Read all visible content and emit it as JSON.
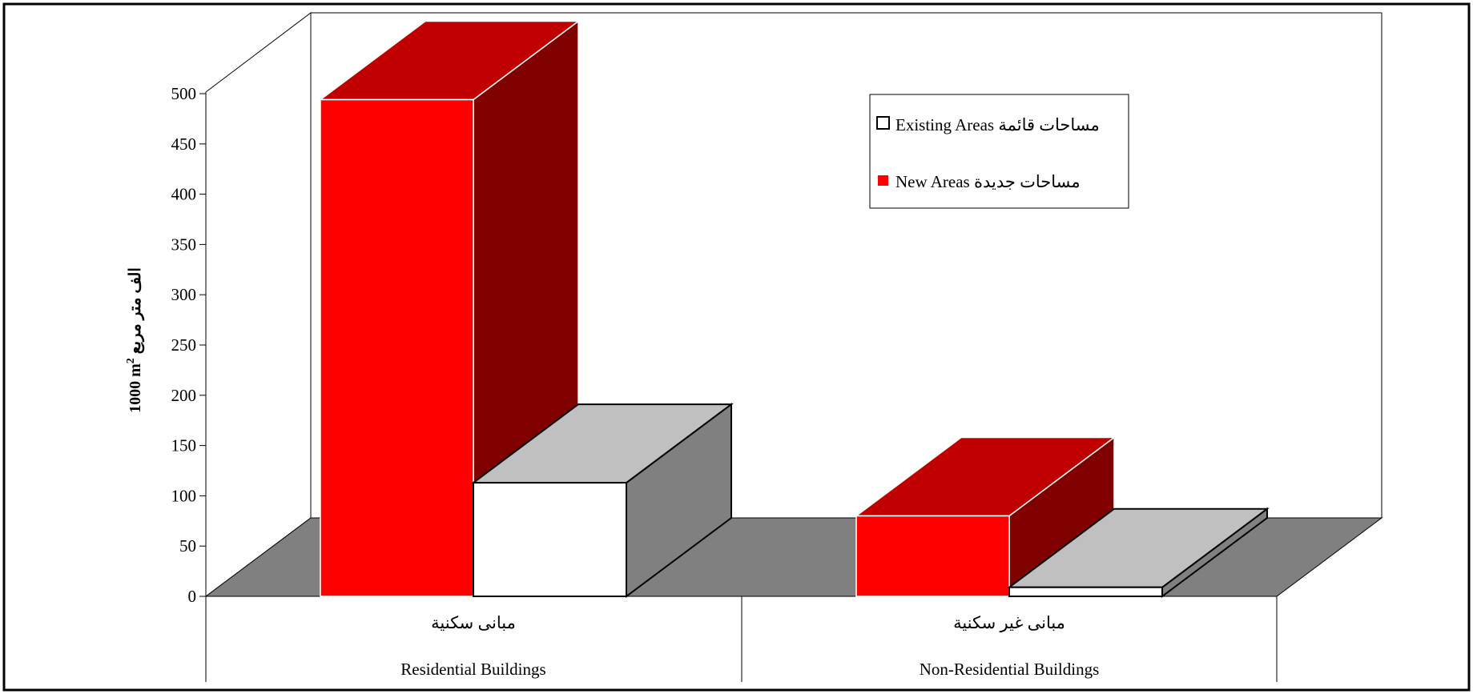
{
  "chart_data": {
    "type": "bar",
    "title": "",
    "ylabel_ar": "الف متر مربع",
    "ylabel_num": "1000 m",
    "ylabel_sup": "2",
    "ylim": [
      0,
      500
    ],
    "y_ticks": [
      "0",
      "50",
      "100",
      "150",
      "200",
      "250",
      "300",
      "350",
      "400",
      "450",
      "500"
    ],
    "categories": [
      {
        "ar": "مبانى سكنية",
        "en": "Residential Buildings"
      },
      {
        "ar": "مبانى غير سكنية",
        "en": "Non-Residential Buildings"
      }
    ],
    "series": [
      {
        "name": "New Areas",
        "name_ar": "مساحات  جديدة",
        "values": [
          494,
          80
        ],
        "color": "#ff0000",
        "top_color": "#c00000",
        "side_color": "#800000"
      },
      {
        "name": "Existing Areas",
        "name_ar": "مساحات  قائمة",
        "values": [
          113,
          9
        ],
        "color": "#ffffff",
        "top_color": "#c0c0c0",
        "side_color": "#808080"
      }
    ],
    "legend_position": "top-right",
    "floor_color": "#808080",
    "grid": false
  }
}
